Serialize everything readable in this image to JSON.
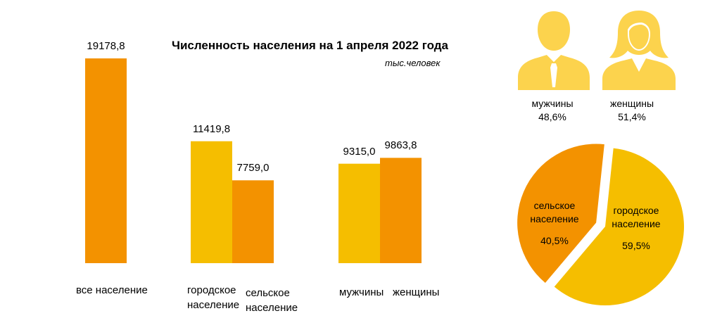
{
  "chart_data": [
    {
      "type": "bar",
      "title": "Численность населения на 1 апреля 2022 года",
      "unit": "тыс.человек",
      "ylim": [
        0,
        20000
      ],
      "grid": false,
      "bars": [
        {
          "category": "все население",
          "value": 19178.8,
          "value_label": "19178,8",
          "color": "#F39200"
        },
        {
          "category": "городское население",
          "value": 11419.8,
          "value_label": "11419,8",
          "color": "#F5BE00"
        },
        {
          "category": "сельское население",
          "value": 7759.0,
          "value_label": "7759,0",
          "color": "#F39200"
        },
        {
          "category": "мужчины",
          "value": 9315.0,
          "value_label": "9315,0",
          "color": "#F5BE00"
        },
        {
          "category": "женщины",
          "value": 9863.8,
          "value_label": "9863,8",
          "color": "#F39200"
        }
      ],
      "category_lines": {
        "all": [
          "все население"
        ],
        "urban": [
          "городское",
          "население"
        ],
        "rural": [
          "сельское",
          "население"
        ],
        "men": [
          "мужчины"
        ],
        "women": [
          "женщины"
        ]
      }
    },
    {
      "type": "pie",
      "slices": [
        {
          "name_lines": [
            "сельское",
            "население"
          ],
          "value": 40.5,
          "value_label": "40,5%",
          "color": "#F39200",
          "exploded": true
        },
        {
          "name_lines": [
            "городское",
            "население"
          ],
          "value": 59.5,
          "value_label": "59,5%",
          "color": "#F5BE00",
          "exploded": false
        }
      ]
    }
  ],
  "gender_share": {
    "men": {
      "label": "мужчины",
      "value": "48,6%",
      "icon": "man-silhouette-icon"
    },
    "women": {
      "label": "женщины",
      "value": "51,4%",
      "icon": "woman-silhouette-icon"
    }
  },
  "colors": {
    "orange": "#F39200",
    "yellow": "#F5BE00",
    "icon": "#FCD34D"
  }
}
